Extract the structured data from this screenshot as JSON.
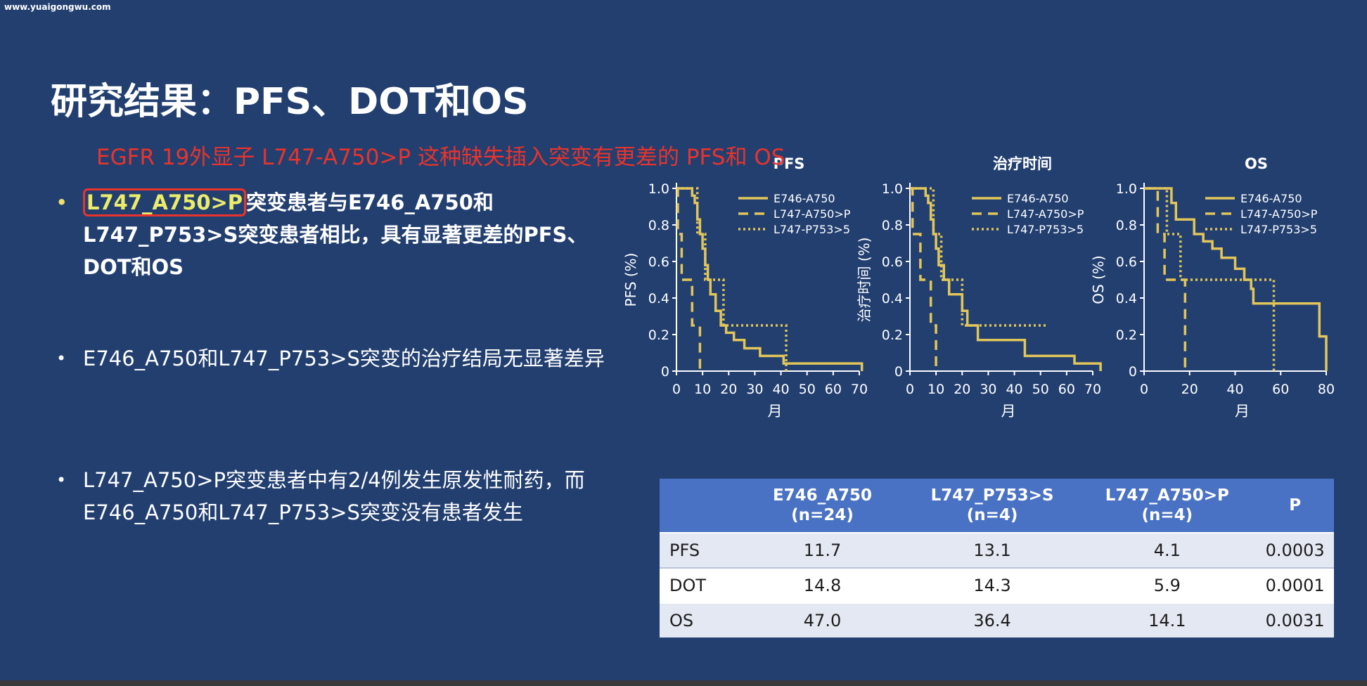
{
  "watermark": "www.yuaigongwu.com",
  "slide": {
    "title": "研究结果：PFS、DOT和OS",
    "annotation": "EGFR 19外显子 L747-A750>P 这种缺失插入突变有更差的 PFS和 OS"
  },
  "bullets": [
    {
      "highlight": "L747_A750>P",
      "text": "突变患者与E746_A750和L747_P753>S突变患者相比，具有显著更差的PFS、DOT和OS"
    },
    {
      "text": "E746_A750和L747_P753>S突变的治疗结局无显著差异"
    },
    {
      "text": "L747_A750>P突变患者中有2/4例发生原发性耐药，而E746_A750和L747_P753>S突变没有患者发生"
    }
  ],
  "colors": {
    "background": "#223f70",
    "curve": "#e2c65a",
    "axis": "#ffffff",
    "annotation": "#e8342c",
    "table_header": "#4a72c4"
  },
  "chart_data": [
    {
      "type": "line",
      "step": true,
      "title": "PFS",
      "xlabel": "月",
      "ylabel": "PFS (%)",
      "xlim": [
        0,
        70
      ],
      "ylim": [
        0,
        1.0
      ],
      "xticks": [
        "0",
        "10",
        "20",
        "30",
        "40",
        "50",
        "60",
        "70"
      ],
      "yticks": [
        "0",
        "0.2",
        "0.4",
        "0.6",
        "0.8",
        "1.0"
      ],
      "legend": "top-right",
      "series": [
        {
          "name": "E746-A750",
          "style": "solid",
          "points": [
            [
              0,
              1.0
            ],
            [
              6,
              1.0
            ],
            [
              6,
              0.96
            ],
            [
              7,
              0.96
            ],
            [
              7,
              0.92
            ],
            [
              8,
              0.92
            ],
            [
              8,
              0.83
            ],
            [
              9,
              0.83
            ],
            [
              9,
              0.75
            ],
            [
              10,
              0.75
            ],
            [
              10,
              0.67
            ],
            [
              11,
              0.67
            ],
            [
              11,
              0.58
            ],
            [
              12,
              0.58
            ],
            [
              12,
              0.5
            ],
            [
              13,
              0.5
            ],
            [
              13,
              0.42
            ],
            [
              15,
              0.42
            ],
            [
              15,
              0.33
            ],
            [
              17,
              0.33
            ],
            [
              17,
              0.25
            ],
            [
              19,
              0.25
            ],
            [
              19,
              0.21
            ],
            [
              22,
              0.21
            ],
            [
              22,
              0.17
            ],
            [
              26,
              0.17
            ],
            [
              26,
              0.125
            ],
            [
              32,
              0.125
            ],
            [
              32,
              0.083
            ],
            [
              41,
              0.083
            ],
            [
              41,
              0.042
            ],
            [
              71,
              0.042
            ],
            [
              71,
              0
            ]
          ]
        },
        {
          "name": "L747-A750>P",
          "style": "dashed",
          "points": [
            [
              0,
              1.0
            ],
            [
              0.5,
              1.0
            ],
            [
              0.5,
              0.75
            ],
            [
              2,
              0.75
            ],
            [
              2,
              0.5
            ],
            [
              6,
              0.5
            ],
            [
              6,
              0.25
            ],
            [
              9,
              0.25
            ],
            [
              9,
              0
            ]
          ]
        },
        {
          "name": "L747-P753>5",
          "style": "dotted",
          "points": [
            [
              0,
              1.0
            ],
            [
              8,
              1.0
            ],
            [
              8,
              0.75
            ],
            [
              11,
              0.75
            ],
            [
              11,
              0.5
            ],
            [
              18,
              0.5
            ],
            [
              18,
              0.25
            ],
            [
              42,
              0.25
            ],
            [
              42,
              0
            ]
          ]
        }
      ]
    },
    {
      "type": "line",
      "step": true,
      "title": "治疗时间",
      "xlabel": "月",
      "ylabel": "治疗时间 (%)",
      "xlim": [
        0,
        70
      ],
      "ylim": [
        0,
        1.0
      ],
      "xticks": [
        "0",
        "10",
        "20",
        "30",
        "40",
        "50",
        "60",
        "70"
      ],
      "yticks": [
        "0",
        "0.2",
        "0.4",
        "0.6",
        "0.8",
        "1.0"
      ],
      "legend": "top-right",
      "series": [
        {
          "name": "E746-A750",
          "style": "solid",
          "points": [
            [
              0,
              1.0
            ],
            [
              6,
              1.0
            ],
            [
              6,
              0.96
            ],
            [
              7,
              0.96
            ],
            [
              7,
              0.92
            ],
            [
              8,
              0.92
            ],
            [
              8,
              0.83
            ],
            [
              9,
              0.83
            ],
            [
              9,
              0.75
            ],
            [
              10,
              0.75
            ],
            [
              10,
              0.67
            ],
            [
              11,
              0.67
            ],
            [
              11,
              0.58
            ],
            [
              13,
              0.58
            ],
            [
              13,
              0.5
            ],
            [
              15,
              0.5
            ],
            [
              15,
              0.42
            ],
            [
              20,
              0.42
            ],
            [
              20,
              0.33
            ],
            [
              22,
              0.33
            ],
            [
              22,
              0.25
            ],
            [
              26,
              0.25
            ],
            [
              26,
              0.17
            ],
            [
              44,
              0.17
            ],
            [
              44,
              0.083
            ],
            [
              63,
              0.083
            ],
            [
              63,
              0.042
            ],
            [
              73,
              0.042
            ],
            [
              73,
              0
            ]
          ]
        },
        {
          "name": "L747-A750>P",
          "style": "dashed",
          "points": [
            [
              0,
              1.0
            ],
            [
              1,
              1.0
            ],
            [
              1,
              0.75
            ],
            [
              4,
              0.75
            ],
            [
              4,
              0.5
            ],
            [
              8,
              0.5
            ],
            [
              8,
              0.25
            ],
            [
              10,
              0.25
            ],
            [
              10,
              0
            ]
          ]
        },
        {
          "name": "L747-P753>5",
          "style": "dotted",
          "points": [
            [
              0,
              1.0
            ],
            [
              9,
              1.0
            ],
            [
              9,
              0.75
            ],
            [
              12,
              0.75
            ],
            [
              12,
              0.5
            ],
            [
              20,
              0.5
            ],
            [
              20,
              0.25
            ],
            [
              52,
              0.25
            ]
          ]
        }
      ]
    },
    {
      "type": "line",
      "step": true,
      "title": "OS",
      "xlabel": "月",
      "ylabel": "OS (%)",
      "xlim": [
        0,
        80
      ],
      "ylim": [
        0,
        1.0
      ],
      "xticks": [
        "0",
        "20",
        "40",
        "60",
        "80"
      ],
      "yticks": [
        "0",
        "0.2",
        "0.4",
        "0.6",
        "0.8",
        "1.0"
      ],
      "legend": "top-right",
      "series": [
        {
          "name": "E746-A750",
          "style": "solid",
          "points": [
            [
              0,
              1.0
            ],
            [
              12,
              1.0
            ],
            [
              12,
              0.92
            ],
            [
              14,
              0.92
            ],
            [
              14,
              0.83
            ],
            [
              22,
              0.83
            ],
            [
              22,
              0.75
            ],
            [
              26,
              0.75
            ],
            [
              26,
              0.71
            ],
            [
              30,
              0.71
            ],
            [
              30,
              0.67
            ],
            [
              34,
              0.67
            ],
            [
              34,
              0.62
            ],
            [
              40,
              0.62
            ],
            [
              40,
              0.56
            ],
            [
              44,
              0.56
            ],
            [
              44,
              0.5
            ],
            [
              47,
              0.5
            ],
            [
              47,
              0.45
            ],
            [
              48,
              0.45
            ],
            [
              48,
              0.37
            ],
            [
              77,
              0.37
            ],
            [
              77,
              0.19
            ],
            [
              80,
              0.19
            ],
            [
              80,
              0
            ]
          ]
        },
        {
          "name": "L747-A750>P",
          "style": "dashed",
          "points": [
            [
              0,
              1.0
            ],
            [
              6,
              1.0
            ],
            [
              6,
              0.75
            ],
            [
              9,
              0.75
            ],
            [
              9,
              0.5
            ],
            [
              18,
              0.5
            ],
            [
              18,
              0
            ]
          ]
        },
        {
          "name": "L747-P753>5",
          "style": "dotted",
          "points": [
            [
              0,
              1.0
            ],
            [
              10,
              1.0
            ],
            [
              10,
              0.75
            ],
            [
              16,
              0.75
            ],
            [
              16,
              0.5
            ],
            [
              57,
              0.5
            ],
            [
              57,
              0
            ]
          ]
        }
      ]
    },
    {
      "type": "table",
      "columns": [
        "",
        "E746_A750\n(n=24)",
        "L747_P753>S\n(n=4)",
        "L747_A750>P\n(n=4)",
        "P"
      ],
      "rows": [
        [
          "PFS",
          "11.7",
          "13.1",
          "4.1",
          "0.0003"
        ],
        [
          "DOT",
          "14.8",
          "14.3",
          "5.9",
          "0.0001"
        ],
        [
          "OS",
          "47.0",
          "36.4",
          "14.1",
          "0.0031"
        ]
      ]
    }
  ]
}
